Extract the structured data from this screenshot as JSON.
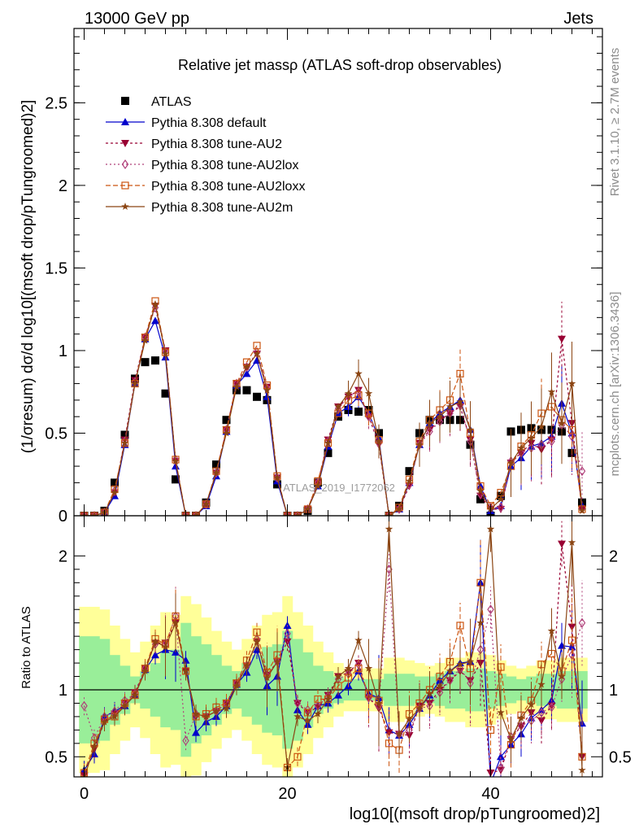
{
  "header": {
    "left": "13000 GeV pp",
    "right": "Jets"
  },
  "side_labels": {
    "rivet": "Rivet 3.1.10, ≥ 2.7M events",
    "mcplots": "mcplots.cern.ch [arXiv:1306.3436]"
  },
  "watermark": "ATLAS_2019_I1772062",
  "chart_data": [
    {
      "type": "line",
      "title": "Relative jet massρ (ATLAS soft-drop observables)",
      "ylabel": "(1/σresum) dσ/d log10[(msoft drop/pTungroomed)2]",
      "xlabel": "log10[(msoft drop/pTungroomed)2]",
      "xlim": [
        -1,
        51
      ],
      "ylim": [
        0,
        2.95
      ],
      "yticks": [
        "0",
        "0.5",
        "1",
        "1.5",
        "2",
        "2.5"
      ],
      "xticks": [
        "0",
        "20",
        "40"
      ],
      "legend": [
        "ATLAS",
        "Pythia 8.308 default",
        "Pythia 8.308 tune-AU2",
        "Pythia 8.308 tune-AU2lox",
        "Pythia 8.308 tune-AU2loxx",
        "Pythia 8.308 tune-AU2m"
      ],
      "series": [
        {
          "name": "ATLAS",
          "color": "#000000",
          "values": [
            0.0,
            0.0,
            0.03,
            0.2,
            0.49,
            0.83,
            0.93,
            0.94,
            0.74,
            0.22,
            0.0,
            0.0,
            0.08,
            0.31,
            0.58,
            0.76,
            0.76,
            0.72,
            0.7,
            0.19,
            0.0,
            0.0,
            0.03,
            0.2,
            0.38,
            0.6,
            0.64,
            0.63,
            0.64,
            0.5,
            0.0,
            0.06,
            0.27,
            0.5,
            0.58,
            0.58,
            0.58,
            0.58,
            0.43,
            0.1,
            0.0,
            0.12,
            0.51,
            0.52,
            0.53,
            0.52,
            0.52,
            0.51,
            0.38,
            0.08
          ]
        },
        {
          "name": "Pythia 8.308 default",
          "color": "#0000cc",
          "values": [
            0.0,
            0.0,
            0.02,
            0.12,
            0.43,
            0.8,
            1.07,
            1.18,
            0.96,
            0.3,
            0.0,
            0.0,
            0.06,
            0.24,
            0.51,
            0.79,
            0.86,
            0.94,
            0.72,
            0.21,
            0.0,
            0.0,
            0.04,
            0.18,
            0.42,
            0.62,
            0.66,
            0.72,
            0.62,
            0.47,
            0.0,
            0.04,
            0.2,
            0.43,
            0.56,
            0.62,
            0.66,
            0.7,
            0.52,
            0.18,
            0.03,
            0.06,
            0.3,
            0.35,
            0.42,
            0.44,
            0.48,
            0.68,
            0.5,
            0.06
          ]
        },
        {
          "name": "Pythia 8.308 tune-AU2",
          "color": "#990033",
          "values": [
            0.0,
            0.0,
            0.02,
            0.14,
            0.46,
            0.82,
            1.08,
            1.27,
            1.0,
            0.33,
            0.0,
            0.0,
            0.07,
            0.26,
            0.52,
            0.8,
            0.9,
            0.98,
            0.78,
            0.23,
            0.0,
            0.0,
            0.04,
            0.2,
            0.46,
            0.66,
            0.72,
            0.76,
            0.6,
            0.43,
            0.0,
            0.04,
            0.18,
            0.44,
            0.52,
            0.58,
            0.62,
            0.66,
            0.46,
            0.12,
            0.04,
            0.04,
            0.32,
            0.38,
            0.44,
            0.4,
            0.46,
            1.07,
            0.56,
            0.04
          ]
        },
        {
          "name": "Pythia 8.308 tune-AU2lox",
          "color": "#b0407a",
          "values": [
            0.0,
            0.0,
            0.02,
            0.15,
            0.45,
            0.81,
            1.08,
            1.26,
            0.99,
            0.34,
            0.0,
            0.0,
            0.07,
            0.26,
            0.52,
            0.8,
            0.9,
            0.99,
            0.77,
            0.23,
            0.0,
            0.0,
            0.04,
            0.2,
            0.45,
            0.65,
            0.72,
            0.75,
            0.6,
            0.44,
            0.0,
            0.04,
            0.19,
            0.43,
            0.51,
            0.57,
            0.62,
            0.67,
            0.45,
            0.13,
            0.05,
            0.05,
            0.33,
            0.38,
            0.41,
            0.43,
            0.45,
            0.55,
            0.48,
            0.27
          ]
        },
        {
          "name": "Pythia 8.308 tune-AU2loxx",
          "color": "#cc5511",
          "values": [
            0.0,
            0.0,
            0.02,
            0.16,
            0.44,
            0.8,
            1.08,
            1.3,
            0.99,
            0.34,
            0.0,
            0.0,
            0.07,
            0.27,
            0.52,
            0.8,
            0.93,
            1.03,
            0.79,
            0.24,
            0.0,
            0.0,
            0.04,
            0.21,
            0.44,
            0.62,
            0.7,
            0.73,
            0.62,
            0.46,
            0.0,
            0.05,
            0.22,
            0.45,
            0.58,
            0.64,
            0.7,
            0.86,
            0.5,
            0.18,
            0.06,
            0.14,
            0.3,
            0.42,
            0.49,
            0.62,
            0.66,
            0.58,
            0.52,
            0.04
          ]
        },
        {
          "name": "Pythia 8.308 tune-AU2m",
          "color": "#8b4513",
          "values": [
            0.0,
            0.0,
            0.02,
            0.14,
            0.44,
            0.8,
            1.06,
            1.28,
            0.98,
            0.33,
            0.0,
            0.0,
            0.07,
            0.26,
            0.5,
            0.78,
            0.9,
            0.98,
            0.76,
            0.23,
            0.0,
            0.0,
            0.04,
            0.18,
            0.44,
            0.66,
            0.74,
            0.86,
            0.74,
            0.45,
            0.0,
            0.04,
            0.21,
            0.43,
            0.56,
            0.6,
            0.66,
            0.69,
            0.52,
            0.15,
            0.04,
            0.1,
            0.32,
            0.41,
            0.47,
            0.54,
            0.75,
            0.56,
            0.8,
            0.03
          ]
        }
      ]
    },
    {
      "type": "line",
      "title": "",
      "ylabel": "Ratio to ATLAS",
      "xlabel": "log10[(msoft drop/pTungroomed)2]",
      "xlim": [
        -1,
        51
      ],
      "ylim": [
        0.35,
        2.3
      ],
      "yticks": [
        "0.5",
        "1",
        "2"
      ],
      "band_68": [
        0.6,
        0.6,
        0.62,
        0.74,
        0.82,
        0.9,
        0.86,
        0.8,
        0.72,
        0.7,
        0.5,
        0.6,
        0.66,
        0.74,
        0.82,
        0.86,
        0.8,
        0.74,
        0.68,
        0.66,
        0.56,
        0.62,
        0.72,
        0.82,
        0.86,
        0.9,
        0.92,
        0.92,
        0.92,
        0.92,
        0.88,
        0.88,
        0.88,
        0.9,
        0.9,
        0.88,
        0.86,
        0.86,
        0.84,
        0.84,
        0.86,
        0.88,
        0.9,
        0.92,
        0.9,
        0.88,
        0.88,
        0.86,
        0.86,
        0.86
      ],
      "band_95": [
        0.38,
        0.38,
        0.4,
        0.52,
        0.62,
        0.72,
        0.64,
        0.52,
        0.42,
        0.44,
        0.3,
        0.36,
        0.46,
        0.56,
        0.64,
        0.7,
        0.62,
        0.52,
        0.44,
        0.42,
        0.3,
        0.42,
        0.52,
        0.64,
        0.72,
        0.8,
        0.84,
        0.84,
        0.84,
        0.84,
        0.76,
        0.76,
        0.78,
        0.8,
        0.82,
        0.8,
        0.76,
        0.76,
        0.72,
        0.72,
        0.74,
        0.78,
        0.82,
        0.84,
        0.82,
        0.78,
        0.78,
        0.76,
        0.76,
        0.76
      ],
      "series": [
        {
          "name": "Pythia 8.308 default",
          "color": "#0000cc",
          "values": [
            0.4,
            0.52,
            0.8,
            0.84,
            0.88,
            0.96,
            1.15,
            1.26,
            1.3,
            1.28,
            1.22,
            0.68,
            0.76,
            0.8,
            0.88,
            1.04,
            1.13,
            1.3,
            1.03,
            1.1,
            1.48,
            0.85,
            0.74,
            0.88,
            0.9,
            0.96,
            1.03,
            1.14,
            0.97,
            0.94,
            0.7,
            0.66,
            0.74,
            0.86,
            0.96,
            1.07,
            1.14,
            1.2,
            1.21,
            1.8,
            0.3,
            0.5,
            0.59,
            0.67,
            0.79,
            0.85,
            0.92,
            1.33,
            1.32,
            0.75
          ]
        },
        {
          "name": "Pythia 8.308 tune-AU2",
          "color": "#990033",
          "values": [
            0.36,
            0.56,
            0.76,
            0.82,
            0.9,
            0.98,
            1.16,
            1.35,
            1.35,
            1.5,
            1.14,
            0.8,
            0.8,
            0.84,
            0.9,
            1.05,
            1.18,
            1.36,
            1.11,
            1.21,
            1.36,
            0.9,
            0.83,
            0.87,
            0.96,
            1.1,
            1.13,
            1.2,
            0.94,
            0.86,
            0.68,
            0.67,
            0.66,
            0.88,
            0.9,
            1.0,
            1.07,
            1.14,
            1.07,
            1.2,
            0.38,
            0.4,
            0.63,
            0.73,
            0.83,
            0.77,
            0.88,
            2.09,
            1.47,
            0.5
          ]
        },
        {
          "name": "Pythia 8.308 tune-AU2lox",
          "color": "#b0407a",
          "values": [
            0.88,
            0.64,
            0.8,
            0.84,
            0.92,
            0.97,
            1.16,
            1.34,
            1.34,
            1.55,
            0.62,
            0.82,
            0.8,
            0.84,
            0.9,
            1.05,
            1.18,
            1.38,
            1.1,
            1.21,
            1.42,
            0.9,
            0.85,
            0.88,
            0.95,
            1.08,
            1.12,
            1.19,
            0.94,
            0.88,
            1.9,
            0.67,
            0.7,
            0.86,
            0.88,
            0.98,
            1.07,
            1.16,
            1.05,
            1.3,
            1.6,
            0.42,
            0.65,
            0.73,
            0.77,
            0.83,
            0.87,
            1.08,
            1.26,
            1.5
          ]
        },
        {
          "name": "Pythia 8.308 tune-AU2loxx",
          "color": "#cc5511",
          "values": [
            0.38,
            0.6,
            0.78,
            0.8,
            0.9,
            0.96,
            1.16,
            1.38,
            1.34,
            1.55,
            1.14,
            0.8,
            0.82,
            0.87,
            0.9,
            1.05,
            1.22,
            1.43,
            1.13,
            1.26,
            0.42,
            0.5,
            0.83,
            0.93,
            0.93,
            1.03,
            1.09,
            1.16,
            0.97,
            0.92,
            0.6,
            0.55,
            0.82,
            0.9,
            1.0,
            1.1,
            1.21,
            1.48,
            1.16,
            1.8,
            0.7,
            1.17,
            0.59,
            0.81,
            0.92,
            1.19,
            1.27,
            1.14,
            1.37,
            0.5
          ]
        },
        {
          "name": "Pythia 8.308 tune-AU2m",
          "color": "#8b4513",
          "values": [
            0.34,
            0.58,
            0.76,
            0.8,
            0.88,
            0.96,
            1.14,
            1.36,
            1.32,
            1.5,
            1.14,
            0.82,
            0.8,
            0.84,
            0.86,
            1.03,
            1.18,
            1.36,
            1.09,
            1.21,
            0.42,
            0.8,
            0.77,
            0.82,
            0.93,
            1.1,
            1.16,
            1.37,
            1.16,
            0.9,
            2.2,
            0.67,
            0.78,
            0.86,
            0.97,
            1.03,
            1.14,
            1.19,
            1.21,
            1.5,
            2.2,
            0.83,
            0.63,
            0.79,
            0.89,
            1.04,
            1.44,
            1.1,
            2.1,
            0.4
          ]
        }
      ]
    }
  ]
}
